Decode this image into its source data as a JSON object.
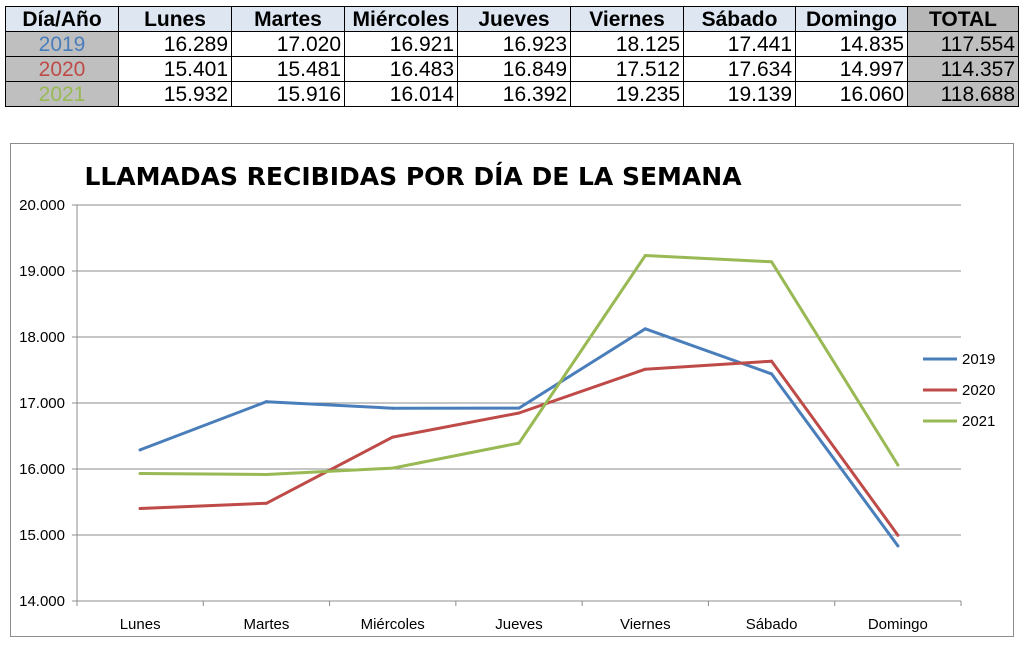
{
  "table": {
    "header": [
      "Día/Año",
      "Lunes",
      "Martes",
      "Miércoles",
      "Jueves",
      "Viernes",
      "Sábado",
      "Domingo",
      "TOTAL"
    ],
    "rows": [
      {
        "year": "2019",
        "values": [
          "16.289",
          "17.020",
          "16.921",
          "16.923",
          "18.125",
          "17.441",
          "14.835"
        ],
        "total": "117.554"
      },
      {
        "year": "2020",
        "values": [
          "15.401",
          "15.481",
          "16.483",
          "16.849",
          "17.512",
          "17.634",
          "14.997"
        ],
        "total": "114.357"
      },
      {
        "year": "2021",
        "values": [
          "15.932",
          "15.916",
          "16.014",
          "16.392",
          "19.235",
          "19.139",
          "16.060"
        ],
        "total": "118.688"
      }
    ]
  },
  "chart_data": {
    "type": "line",
    "title": "LLAMADAS RECIBIDAS POR DÍA DE LA SEMANA",
    "categories": [
      "Lunes",
      "Martes",
      "Miércoles",
      "Jueves",
      "Viernes",
      "Sábado",
      "Domingo"
    ],
    "ylim": [
      14000,
      20000
    ],
    "yticks": [
      14000,
      15000,
      16000,
      17000,
      18000,
      19000,
      20000
    ],
    "ytick_labels": [
      "14.000",
      "15.000",
      "16.000",
      "17.000",
      "18.000",
      "19.000",
      "20.000"
    ],
    "grid": true,
    "legend_position": "right",
    "series": [
      {
        "name": "2019",
        "color": "#4a7ebb",
        "values": [
          16289,
          17020,
          16921,
          16923,
          18125,
          17441,
          14835
        ]
      },
      {
        "name": "2020",
        "color": "#be4b48",
        "values": [
          15401,
          15481,
          16483,
          16849,
          17512,
          17634,
          14997
        ]
      },
      {
        "name": "2021",
        "color": "#98b954",
        "values": [
          15932,
          15916,
          16014,
          16392,
          19235,
          19139,
          16060
        ]
      }
    ]
  }
}
